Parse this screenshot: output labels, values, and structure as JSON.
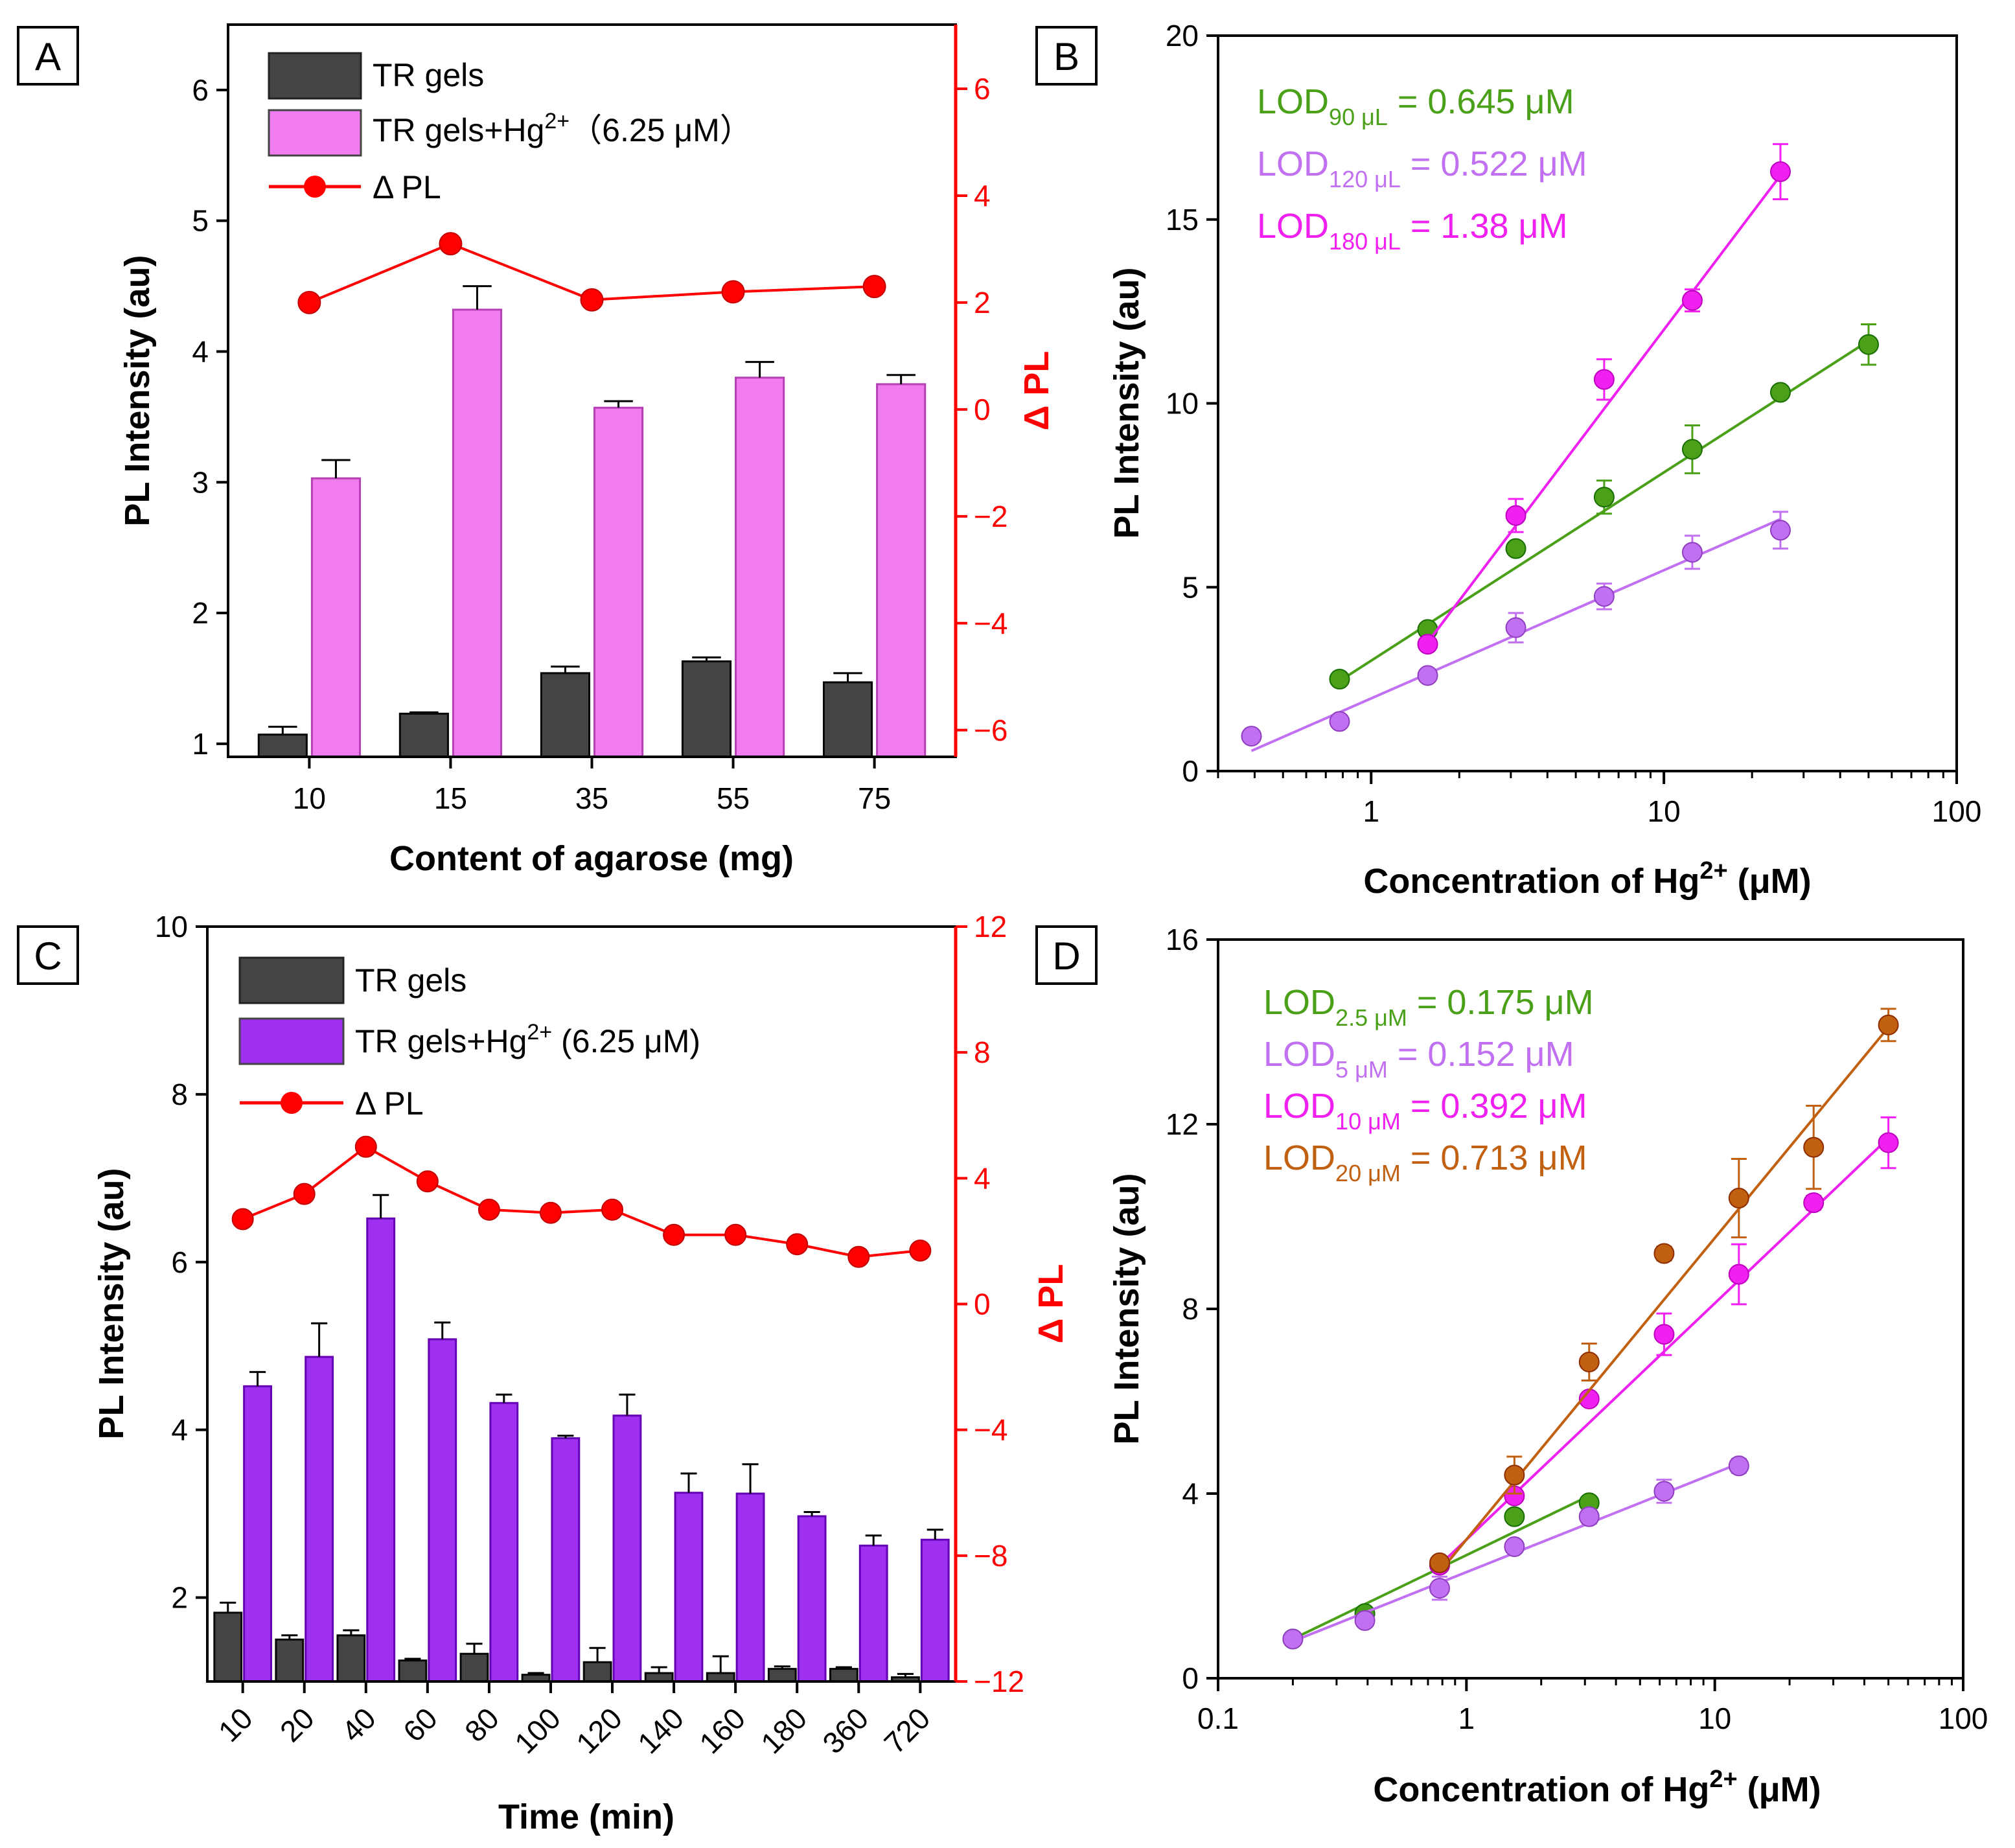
{
  "colors": {
    "dark_bar": "#444444",
    "pink_bar": "#f07cf0",
    "purple_bar": "#a030f0",
    "red": "#ff0000",
    "green": "#4aa018",
    "light_purple": "#c070f0",
    "magenta": "#f020f0",
    "orange": "#c06010"
  },
  "chart_data": [
    {
      "panel": "A",
      "type": "bar",
      "xlabel": "Content of agarose (mg)",
      "ylabel": "PL Intensity (au)",
      "ylabel_right": "Δ PL",
      "categories": [
        "10",
        "15",
        "35",
        "55",
        "75"
      ],
      "ylim": [
        0.9,
        6.5
      ],
      "yticks": [
        "1",
        "2",
        "3",
        "4",
        "5",
        "6"
      ],
      "yticks_vals": [
        1,
        2,
        3,
        4,
        5,
        6
      ],
      "ylim_right": [
        -6.5,
        7.2
      ],
      "yticks_right": [
        "−6",
        "−4",
        "−2",
        "0",
        "2",
        "4",
        "6"
      ],
      "yticks_right_vals": [
        -6,
        -4,
        -2,
        0,
        2,
        4,
        6
      ],
      "series": [
        {
          "name": "TR gels",
          "kind": "bar",
          "color": "#444444",
          "values": [
            1.07,
            1.23,
            1.54,
            1.63,
            1.47
          ],
          "errors": [
            0.06,
            0.01,
            0.05,
            0.03,
            0.07
          ]
        },
        {
          "name": "TR gels+Hg²⁺（6.25 μM）",
          "kind": "bar",
          "color": "#f07cf0",
          "values": [
            3.03,
            4.32,
            3.57,
            3.8,
            3.75
          ],
          "errors": [
            0.14,
            0.18,
            0.05,
            0.12,
            0.07
          ]
        },
        {
          "name": "Δ PL",
          "kind": "line-right",
          "color": "#ff0000",
          "values": [
            2.0,
            3.1,
            2.05,
            2.2,
            2.3
          ]
        }
      ]
    },
    {
      "panel": "B",
      "type": "scatter",
      "xscale": "log",
      "xlabel_main": "Concentration of Hg",
      "xlabel_sup": "2+",
      "xlabel_end": " (μM)",
      "ylabel": "PL Intensity (au)",
      "xlim": [
        0.3,
        100
      ],
      "xticks": [
        "1",
        "10",
        "100"
      ],
      "xticks_vals": [
        1,
        10,
        100
      ],
      "ylim": [
        0,
        20
      ],
      "yticks": [
        "0",
        "5",
        "10",
        "15",
        "20"
      ],
      "yticks_vals": [
        0,
        5,
        10,
        15,
        20
      ],
      "annotations": [
        {
          "main": "LOD",
          "sub": "90 μL",
          "rest": " = 0.645 μM",
          "color": "#4aa018"
        },
        {
          "main": "LOD",
          "sub": "120 μL",
          "rest": " = 0.522 μM",
          "color": "#c070f0"
        },
        {
          "main": "LOD",
          "sub": "180 μL",
          "rest": " = 1.38 μM",
          "color": "#f020f0"
        }
      ],
      "series": [
        {
          "name": "90 μL",
          "color": "#4aa018",
          "x": [
            0.78,
            1.56,
            3.12,
            6.25,
            12.5,
            25,
            50
          ],
          "y": [
            2.5,
            3.85,
            6.05,
            7.45,
            8.75,
            10.3,
            11.6
          ],
          "errors": [
            0.1,
            0.15,
            0.15,
            0.45,
            0.65,
            0.15,
            0.55
          ],
          "fit": [
            [
              0.78,
              2.45
            ],
            [
              50,
              11.7
            ]
          ]
        },
        {
          "name": "120 μL",
          "color": "#c070f0",
          "x": [
            0.39,
            0.78,
            1.56,
            3.12,
            6.25,
            12.5,
            25
          ],
          "y": [
            0.95,
            1.35,
            2.6,
            3.9,
            4.75,
            5.95,
            6.55
          ],
          "errors": [
            0.1,
            0.1,
            0.1,
            0.4,
            0.35,
            0.45,
            0.5
          ],
          "fit": [
            [
              0.39,
              0.55
            ],
            [
              25,
              6.85
            ]
          ]
        },
        {
          "name": "180 μL",
          "color": "#f020f0",
          "x": [
            1.56,
            3.12,
            6.25,
            12.5,
            25
          ],
          "y": [
            3.45,
            6.95,
            10.65,
            12.8,
            16.3
          ],
          "errors": [
            0.15,
            0.45,
            0.55,
            0.3,
            0.75
          ],
          "fit": [
            [
              1.56,
              3.5
            ],
            [
              25,
              16.2
            ]
          ]
        }
      ]
    },
    {
      "panel": "C",
      "type": "bar",
      "xlabel": "Time (min)",
      "ylabel": "PL Intensity (au)",
      "ylabel_right": "Δ PL",
      "categories": [
        "10",
        "20",
        "40",
        "60",
        "80",
        "100",
        "120",
        "140",
        "160",
        "180",
        "360",
        "720"
      ],
      "ylim": [
        1,
        10
      ],
      "yticks": [
        "2",
        "4",
        "6",
        "8",
        "10"
      ],
      "yticks_vals": [
        2,
        4,
        6,
        8,
        10
      ],
      "ylim_right": [
        -12,
        12
      ],
      "yticks_right": [
        "−12",
        "−8",
        "−4",
        "0",
        "4",
        "8",
        "12"
      ],
      "yticks_right_vals": [
        -12,
        -8,
        -4,
        0,
        4,
        8,
        12
      ],
      "series": [
        {
          "name": "TR gels",
          "kind": "bar",
          "color": "#444444",
          "values": [
            1.82,
            1.5,
            1.55,
            1.25,
            1.33,
            1.08,
            1.23,
            1.1,
            1.1,
            1.15,
            1.15,
            1.05
          ],
          "errors": [
            0.12,
            0.05,
            0.06,
            0.02,
            0.12,
            0.02,
            0.17,
            0.07,
            0.2,
            0.03,
            0.02,
            0.04
          ]
        },
        {
          "name": "TR gels+Hg²⁺ (6.25 μM)",
          "kind": "bar",
          "color": "#a030f0",
          "values": [
            4.52,
            4.87,
            6.52,
            5.08,
            4.32,
            3.9,
            4.17,
            3.25,
            3.24,
            2.97,
            2.62,
            2.69
          ],
          "errors": [
            0.17,
            0.4,
            0.28,
            0.2,
            0.1,
            0.03,
            0.25,
            0.23,
            0.35,
            0.05,
            0.12,
            0.12
          ]
        },
        {
          "name": "Δ PL",
          "kind": "line-right",
          "color": "#ff0000",
          "values": [
            2.7,
            3.5,
            5.0,
            3.9,
            3.0,
            2.9,
            3.0,
            2.2,
            2.2,
            1.9,
            1.5,
            1.7
          ]
        }
      ]
    },
    {
      "panel": "D",
      "type": "scatter",
      "xscale": "log",
      "xlabel_main": "Concentration of Hg",
      "xlabel_sup": "2+",
      "xlabel_end": " (μM)",
      "ylabel": "PL Intensity (au)",
      "xlim": [
        0.1,
        100
      ],
      "xticks": [
        "0.1",
        "1",
        "10",
        "100"
      ],
      "xticks_vals": [
        0.1,
        1,
        10,
        100
      ],
      "ylim": [
        0,
        16
      ],
      "yticks": [
        "0",
        "4",
        "8",
        "12",
        "16"
      ],
      "yticks_vals": [
        0,
        4,
        8,
        12,
        16
      ],
      "annotations": [
        {
          "main": "LOD",
          "sub": "2.5 μM",
          "rest": " = 0.175 μM",
          "color": "#4aa018"
        },
        {
          "main": "LOD",
          "sub": "5 μM",
          "rest": " = 0.152 μM",
          "color": "#c070f0"
        },
        {
          "main": "LOD",
          "sub": "10 μM",
          "rest": " = 0.392 μM",
          "color": "#f020f0"
        },
        {
          "main": "LOD",
          "sub": "20 μM",
          "rest": " = 0.713 μM",
          "color": "#c06010"
        }
      ],
      "series": [
        {
          "name": "2.5 μM",
          "color": "#4aa018",
          "x": [
            0.2,
            0.39,
            0.78,
            1.56,
            3.12
          ],
          "y": [
            0.85,
            1.4,
            2.45,
            3.5,
            3.8
          ],
          "errors": [
            0.05,
            0.05,
            0.1,
            0.1,
            0.1
          ],
          "fit": [
            [
              0.2,
              0.85
            ],
            [
              3.12,
              3.95
            ]
          ]
        },
        {
          "name": "5 μM",
          "color": "#c070f0",
          "x": [
            0.2,
            0.39,
            0.78,
            1.56,
            3.12,
            6.25,
            12.5
          ],
          "y": [
            0.85,
            1.25,
            1.95,
            2.85,
            3.5,
            4.05,
            4.6
          ],
          "errors": [
            0.05,
            0.1,
            0.25,
            0.1,
            0.15,
            0.25,
            0.15
          ],
          "fit": [
            [
              0.2,
              0.8
            ],
            [
              12.5,
              4.65
            ]
          ]
        },
        {
          "name": "10 μM",
          "color": "#f020f0",
          "x": [
            0.78,
            1.56,
            3.12,
            6.25,
            12.5,
            25,
            50
          ],
          "y": [
            2.45,
            3.95,
            6.05,
            7.45,
            8.75,
            10.3,
            11.6
          ],
          "errors": [
            0.1,
            0.1,
            0.1,
            0.45,
            0.65,
            0.15,
            0.55
          ],
          "fit": [
            [
              0.78,
              2.45
            ],
            [
              50,
              11.7
            ]
          ]
        },
        {
          "name": "20 μM",
          "color": "#c06010",
          "x": [
            0.78,
            1.56,
            3.12,
            6.25,
            12.5,
            25,
            50
          ],
          "y": [
            2.5,
            4.4,
            6.85,
            9.2,
            10.4,
            11.5,
            14.15
          ],
          "errors": [
            0.1,
            0.4,
            0.4,
            0.15,
            0.85,
            0.9,
            0.35
          ],
          "fit": [
            [
              0.78,
              2.3
            ],
            [
              50,
              14.1
            ]
          ]
        }
      ]
    }
  ],
  "panel_labels": [
    "A",
    "B",
    "C",
    "D"
  ],
  "legend_A": [
    "TR gels",
    "TR gels+Hg",
    "2+",
    "（6.25 μM）",
    "Δ PL"
  ],
  "legend_C": [
    "TR gels",
    "TR gels+Hg",
    "2+",
    " (6.25 μM)",
    "Δ PL"
  ]
}
